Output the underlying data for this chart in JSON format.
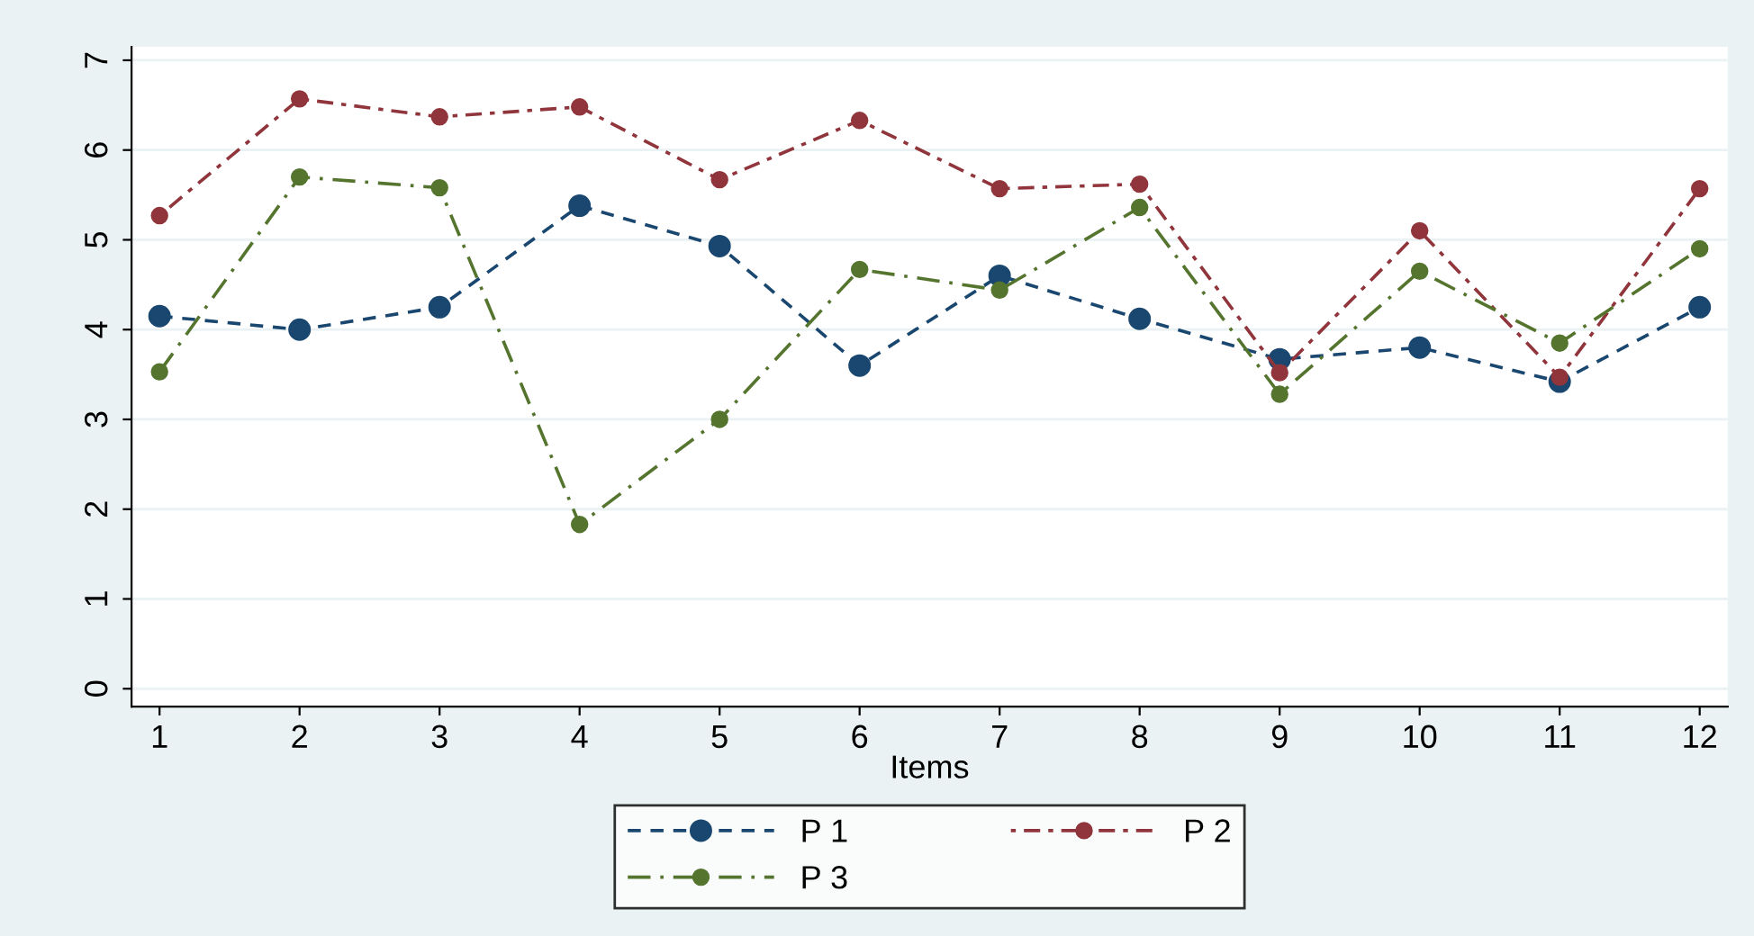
{
  "chart_data": {
    "type": "line",
    "xlabel": "Items",
    "x": [
      1,
      2,
      3,
      4,
      5,
      6,
      7,
      8,
      9,
      10,
      11,
      12
    ],
    "series": [
      {
        "name": "P 1",
        "color": "#1a476f",
        "line_style": "dashed",
        "values": [
          4.15,
          4.0,
          4.25,
          5.38,
          4.93,
          3.6,
          4.6,
          4.12,
          3.67,
          3.8,
          3.42,
          4.25
        ]
      },
      {
        "name": "P 2",
        "color": "#90353b",
        "line_style": "dotted",
        "values": [
          5.27,
          6.57,
          6.37,
          6.48,
          5.67,
          6.33,
          5.57,
          5.62,
          3.52,
          5.1,
          3.47,
          5.57
        ]
      },
      {
        "name": "P 3",
        "color": "#55752f",
        "line_style": "dashed",
        "values": [
          3.53,
          5.7,
          5.58,
          1.83,
          3.0,
          4.67,
          4.44,
          5.36,
          3.28,
          4.65,
          3.85,
          4.9
        ]
      }
    ],
    "xlim": [
      0.8,
      12.2
    ],
    "xticks": [
      1,
      2,
      3,
      4,
      5,
      6,
      7,
      8,
      9,
      10,
      11,
      12
    ],
    "ylim": [
      -0.2,
      7.15
    ],
    "yticks": [
      0,
      1,
      2,
      3,
      4,
      5,
      6,
      7
    ],
    "grid": "y",
    "legend": "bottom",
    "marker": "circle"
  }
}
